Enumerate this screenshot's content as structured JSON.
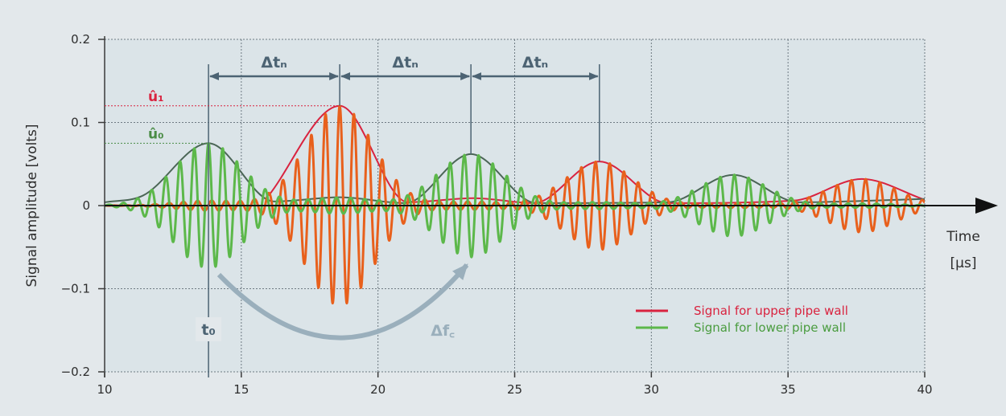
{
  "chart_data": {
    "type": "line",
    "xlabel": "Time\n[µs]",
    "xlabel_lines": [
      "Time",
      "[µs]"
    ],
    "ylabel": "Signal amplitude [volts]",
    "xlim": [
      10,
      40
    ],
    "ylim": [
      -0.2,
      0.2
    ],
    "x_ticks": [
      10,
      15,
      20,
      25,
      30,
      35,
      40
    ],
    "x_tick_labels": [
      "10",
      "15",
      "20",
      "25",
      "30",
      "35",
      "40"
    ],
    "y_ticks": [
      0.2,
      0.1,
      0,
      -0.1,
      -0.2
    ],
    "y_tick_labels": [
      "0.2",
      "0.1",
      "0",
      "−0.1",
      "−0.2"
    ],
    "grid": true,
    "legend_position": "bottom-right",
    "series": [
      {
        "name": "Signal for upper pipe wall",
        "color": "#e8601c",
        "envelope_color": "#d9233f",
        "carrier_period": 0.52,
        "pulses": [
          {
            "center": 18.6,
            "amplitude": 0.12
          },
          {
            "center": 28.1,
            "amplitude": 0.053
          },
          {
            "center": 37.7,
            "amplitude": 0.032
          }
        ],
        "envelope_peaks": [
          {
            "x": 18.6,
            "y": 0.12
          },
          {
            "x": 23.5,
            "y": 0.009
          },
          {
            "x": 28.1,
            "y": 0.053
          },
          {
            "x": 37.7,
            "y": 0.032
          }
        ]
      },
      {
        "name": "Signal for lower pipe wall",
        "color": "#5cb84a",
        "envelope_color": "#4b6656",
        "carrier_period": 0.52,
        "pulses": [
          {
            "center": 13.8,
            "amplitude": 0.075
          },
          {
            "center": 23.4,
            "amplitude": 0.062
          },
          {
            "center": 33.0,
            "amplitude": 0.037
          }
        ],
        "envelope_peaks": [
          {
            "x": 13.8,
            "y": 0.075
          },
          {
            "x": 18.6,
            "y": 0.01
          },
          {
            "x": 23.4,
            "y": 0.062
          },
          {
            "x": 33.0,
            "y": 0.037
          }
        ]
      }
    ],
    "annotations": {
      "delta_t": {
        "label": "Δtₙ",
        "marks": [
          13.8,
          18.6,
          23.4,
          28.1
        ]
      },
      "u1": {
        "label": "û₁",
        "value": 0.12
      },
      "u0": {
        "label": "û₀",
        "value": 0.075
      },
      "t0": {
        "label": "t₀",
        "x": 13.8
      },
      "delta_fc": {
        "label": "Δf꜀"
      }
    }
  }
}
